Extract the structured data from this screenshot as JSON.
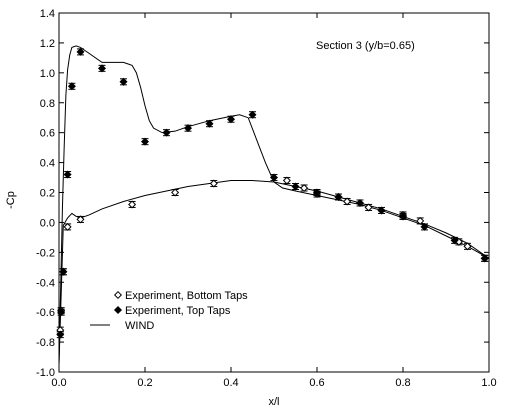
{
  "chart_data": {
    "type": "line",
    "title": "",
    "annotation": "Section 3 (y/b=0.65)",
    "xlabel": "x/l",
    "ylabel": "-Cp",
    "xlim": [
      0.0,
      1.0
    ],
    "ylim": [
      -1.0,
      1.4
    ],
    "xticks": [
      0.0,
      0.2,
      0.4,
      0.6,
      0.8,
      1.0
    ],
    "xtick_labels": [
      "0.0",
      "0.2",
      "0.4",
      "0.6",
      "0.8",
      "1.0"
    ],
    "yticks": [
      -1.0,
      -0.8,
      -0.6,
      -0.4,
      -0.2,
      0.0,
      0.2,
      0.4,
      0.6,
      0.8,
      1.0,
      1.2,
      1.4
    ],
    "ytick_labels": [
      "-1.0",
      "-0.8",
      "-0.6",
      "-0.4",
      "-0.2",
      "0.0",
      "0.2",
      "0.4",
      "0.6",
      "0.8",
      "1.0",
      "1.2",
      "1.4"
    ],
    "grid": false,
    "legend_position": "bottom-left",
    "series": [
      {
        "name": "Experiment, Bottom Taps",
        "kind": "scatter",
        "marker": "open-diamond",
        "error": 0.015,
        "x": [
          0.003,
          0.005,
          0.01,
          0.02,
          0.05,
          0.17,
          0.27,
          0.36,
          0.53,
          0.57,
          0.6,
          0.65,
          0.67,
          0.72,
          0.8,
          0.84,
          0.93,
          0.95,
          0.99
        ],
        "y": [
          -0.72,
          -0.59,
          -0.33,
          -0.03,
          0.02,
          0.12,
          0.2,
          0.26,
          0.28,
          0.23,
          0.19,
          0.17,
          0.14,
          0.1,
          0.05,
          0.01,
          -0.13,
          -0.16,
          -0.24
        ]
      },
      {
        "name": "Experiment, Top Taps",
        "kind": "scatter",
        "marker": "filled-diamond",
        "error": 0.02,
        "x": [
          0.003,
          0.005,
          0.01,
          0.02,
          0.03,
          0.05,
          0.1,
          0.15,
          0.2,
          0.25,
          0.3,
          0.35,
          0.4,
          0.45,
          0.5,
          0.55,
          0.6,
          0.65,
          0.7,
          0.75,
          0.8,
          0.85,
          0.92,
          0.99
        ],
        "y": [
          -0.75,
          -0.6,
          -0.33,
          0.32,
          0.91,
          1.14,
          1.03,
          0.94,
          0.54,
          0.6,
          0.63,
          0.66,
          0.69,
          0.72,
          0.3,
          0.24,
          0.2,
          0.17,
          0.13,
          0.08,
          0.04,
          -0.03,
          -0.12,
          -0.24
        ]
      },
      {
        "name": "WIND",
        "kind": "line",
        "x": [
          0.0,
          0.003,
          0.008,
          0.012,
          0.016,
          0.02,
          0.025,
          0.03,
          0.04,
          0.05,
          0.07,
          0.1,
          0.12,
          0.15,
          0.17,
          0.18,
          0.19,
          0.2,
          0.21,
          0.22,
          0.24,
          0.27,
          0.3,
          0.35,
          0.4,
          0.42,
          0.44,
          0.46,
          0.48,
          0.5,
          0.52,
          0.55,
          0.6,
          0.65,
          0.7,
          0.75,
          0.8,
          0.85,
          0.9,
          0.95,
          1.0
        ],
        "y": [
          -0.95,
          -0.55,
          0.1,
          0.5,
          0.85,
          1.02,
          1.12,
          1.17,
          1.18,
          1.17,
          1.13,
          1.07,
          1.07,
          1.07,
          1.05,
          1.0,
          0.9,
          0.78,
          0.68,
          0.63,
          0.6,
          0.61,
          0.64,
          0.68,
          0.71,
          0.72,
          0.7,
          0.55,
          0.4,
          0.27,
          0.23,
          0.21,
          0.18,
          0.15,
          0.12,
          0.08,
          0.03,
          -0.02,
          -0.09,
          -0.16,
          -0.24
        ]
      },
      {
        "name": "WIND (lower surface)",
        "kind": "line",
        "legend": false,
        "x": [
          0.0,
          0.01,
          0.02,
          0.03,
          0.04,
          0.05,
          0.07,
          0.1,
          0.15,
          0.2,
          0.25,
          0.3,
          0.35,
          0.4,
          0.45,
          0.5,
          0.55,
          0.6,
          0.65,
          0.7,
          0.75,
          0.8,
          0.85,
          0.9,
          0.95,
          1.0
        ],
        "y": [
          -0.95,
          -0.02,
          0.03,
          0.06,
          0.04,
          0.03,
          0.05,
          0.09,
          0.14,
          0.18,
          0.21,
          0.24,
          0.26,
          0.28,
          0.28,
          0.27,
          0.24,
          0.21,
          0.17,
          0.13,
          0.09,
          0.04,
          -0.01,
          -0.07,
          -0.14,
          -0.24
        ]
      }
    ]
  }
}
